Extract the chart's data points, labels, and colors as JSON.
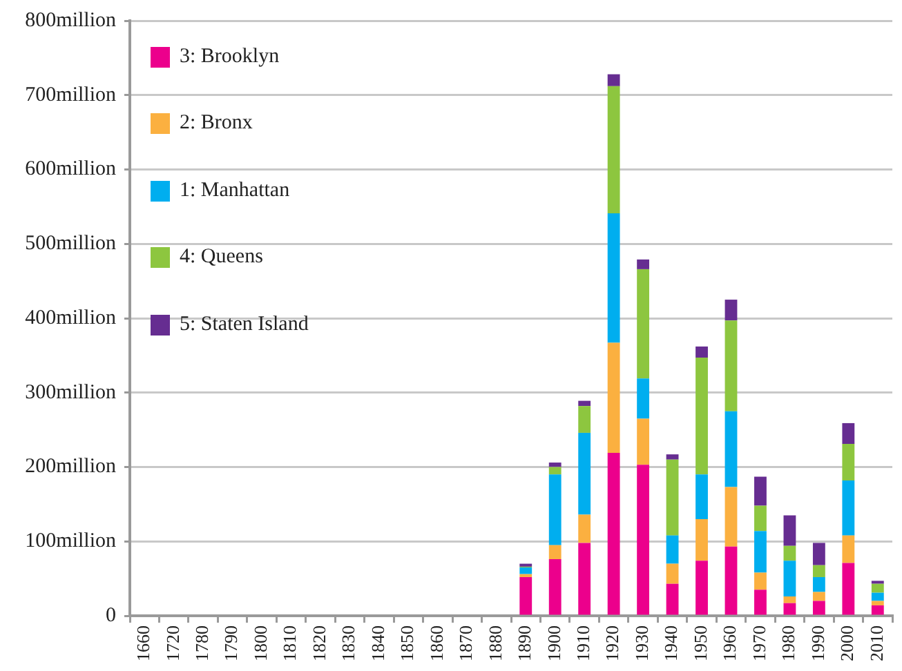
{
  "chart_data": {
    "type": "bar",
    "stacked": true,
    "categories": [
      "1660",
      "1720",
      "1780",
      "1790",
      "1800",
      "1810",
      "1820",
      "1830",
      "1840",
      "1850",
      "1860",
      "1870",
      "1880",
      "1890",
      "1900",
      "1910",
      "1920",
      "1930",
      "1940",
      "1950",
      "1960",
      "1970",
      "1980",
      "1990",
      "2000",
      "2010"
    ],
    "series": [
      {
        "name": "3: Brooklyn",
        "color": "#ec008c",
        "values": [
          0,
          0,
          0,
          0,
          0,
          0,
          0,
          0,
          0,
          0,
          0,
          0,
          0,
          52,
          76,
          98,
          219,
          203,
          43,
          74,
          93,
          35,
          17,
          20,
          71,
          14
        ]
      },
      {
        "name": "2: Bronx",
        "color": "#fbb040",
        "values": [
          0,
          0,
          0,
          0,
          0,
          0,
          0,
          0,
          0,
          0,
          0,
          0,
          0,
          4,
          19,
          38,
          148,
          62,
          27,
          56,
          80,
          23,
          9,
          12,
          37,
          6
        ]
      },
      {
        "name": "1: Manhattan",
        "color": "#00aeef",
        "values": [
          0,
          0,
          0,
          0,
          0,
          0,
          0,
          0,
          0,
          0,
          0,
          0,
          0,
          9,
          95,
          110,
          174,
          54,
          38,
          60,
          102,
          56,
          48,
          20,
          74,
          11
        ]
      },
      {
        "name": "4: Queens",
        "color": "#8dc63f",
        "values": [
          0,
          0,
          0,
          0,
          0,
          0,
          0,
          0,
          0,
          0,
          0,
          0,
          0,
          1,
          10,
          36,
          171,
          147,
          102,
          157,
          122,
          34,
          20,
          16,
          49,
          12
        ]
      },
      {
        "name": "5: Staten Island",
        "color": "#662d91",
        "values": [
          0,
          0,
          0,
          0,
          0,
          0,
          0,
          0,
          0,
          0,
          0,
          0,
          0,
          4,
          6,
          7,
          16,
          13,
          7,
          15,
          28,
          39,
          41,
          30,
          28,
          4
        ]
      }
    ],
    "ylim": [
      0,
      800
    ],
    "yticks": [
      0,
      {
        "value": 100,
        "label": "100million"
      },
      {
        "value": 200,
        "label": "200million"
      },
      {
        "value": 300,
        "label": "300million"
      },
      {
        "value": 400,
        "label": "400million"
      },
      {
        "value": 500,
        "label": "500million"
      },
      {
        "value": 600,
        "label": "600million"
      },
      {
        "value": 700,
        "label": "700million"
      },
      {
        "value": 800,
        "label": "800million"
      }
    ],
    "grid": "y",
    "legend": "top left"
  }
}
